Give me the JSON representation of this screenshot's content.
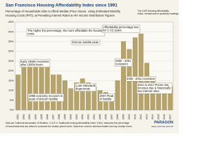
{
  "chart_data": {
    "type": "bar",
    "title": "San Francisco Housing Affordability Index since 1991",
    "subtitle": [
      "Percentage of Households Able to Afford Median Price House, Using Estimated Monthly",
      "Housing Costs (PITI), at Prevailing Interest Rates & HH Income Distribution Figures"
    ],
    "legend_note": [
      "The CAR Housing Affordability",
      "Index, semiannual or quarterly readings"
    ],
    "annotations": [
      "The higher the percentage, the more affordable the housing costs",
      "Affordability percentage low for 2 1/2 years",
      "Dotcom bubble peak",
      "Early 1990s recession after 1980s boom",
      "2000 - 2001 recession",
      "Loan standards degenerate",
      "1998 economy recovers in peak of dotcom bubble",
      "2007 Peak of bubble",
      "2009 - 2011 recession",
      "2012 to 2017 Prices rise, incomes rise & historically low interest rates"
    ],
    "footer": [
      "Data per California Association of Realtors. C.A.R.'s \"traditional housing affordability index\" (HAI), measures the percentage",
      "of households that can afford to purchase the median priced home. Data from sources deemed reliable but may contain errors."
    ],
    "logo": [
      "PARAGON",
      "REAL ESTATE GROUP"
    ],
    "categories": [
      "1991",
      "1992",
      "1993",
      "1994",
      "1995",
      "1996",
      "1997",
      "1998",
      "1999",
      "2000",
      "2001",
      "2002",
      "2003",
      "2004",
      "2005",
      "2006",
      "2007",
      "2008",
      "2009",
      "2010",
      "2011",
      "2012",
      "2013",
      "2014",
      "2015",
      "2016",
      "2017"
    ],
    "values": [
      18,
      22,
      25,
      26,
      25,
      23,
      18,
      18,
      15,
      11,
      14,
      16,
      14,
      12,
      10,
      9,
      8,
      15,
      35,
      31,
      37,
      39,
      24,
      16,
      13,
      12,
      12
    ],
    "color": "#b8a468",
    "ylim": [
      0,
      45
    ],
    "yticks": [
      {
        "value": 0,
        "label": "0%"
      },
      {
        "value": 5,
        "label": "5%"
      },
      {
        "value": 10,
        "label": "10%"
      },
      {
        "value": 15,
        "label": "15%"
      },
      {
        "value": 20,
        "label": "20%"
      },
      {
        "value": 25,
        "label": "25%"
      },
      {
        "value": 30,
        "label": "30%"
      },
      {
        "value": 35,
        "label": "35%"
      },
      {
        "value": 40,
        "label": "40%"
      },
      {
        "value": 45,
        "label": "45%"
      }
    ],
    "grid": true
  }
}
